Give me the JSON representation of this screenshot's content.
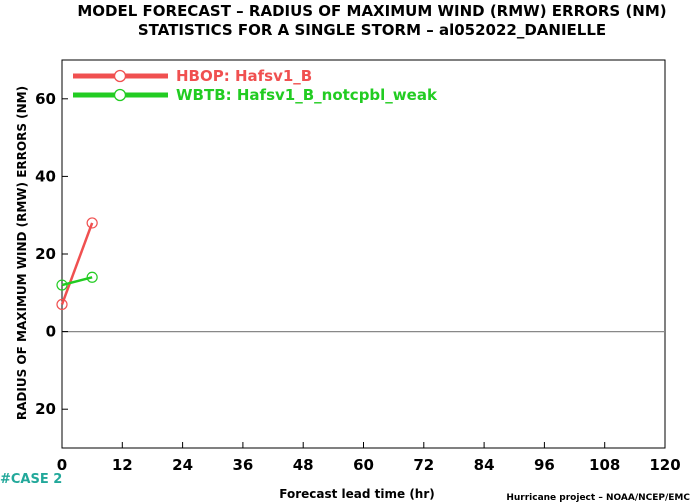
{
  "title": {
    "line1": "MODEL FORECAST – RADIUS OF MAXIMUM WIND (RMW) ERRORS (NM)",
    "line2": "STATISTICS FOR A SINGLE STORM – al052022_DANIELLE"
  },
  "case_label": "#CASE  2",
  "credit": "Hurricane project – NOAA/NCEP/EMC",
  "colors": {
    "axis": "#000000",
    "zero_line": "#888888",
    "case_label": "#22a89a"
  },
  "chart_data": {
    "type": "line",
    "xlabel": "Forecast lead time (hr)",
    "ylabel": "RADIUS OF MAXIMUM WIND (RMW) ERRORS (NM)",
    "xlim": [
      0,
      120
    ],
    "ylim": [
      -30,
      70
    ],
    "xticks": [
      0,
      12,
      24,
      36,
      48,
      60,
      72,
      84,
      96,
      108,
      120
    ],
    "yticks": [
      -20,
      0,
      20,
      40,
      60
    ],
    "ytick_labels": [
      "20",
      "0",
      "20",
      "40",
      "60"
    ],
    "grid": false,
    "zero_line": true,
    "legend_placement": "top-left",
    "series": [
      {
        "name": "HBOP: Hafsv1_B",
        "color": "#f05050",
        "x": [
          0,
          6
        ],
        "y": [
          7,
          28
        ]
      },
      {
        "name": "WBTB: Hafsv1_B_notcpbl_weak",
        "color": "#22cc22",
        "x": [
          0,
          6
        ],
        "y": [
          12,
          14
        ]
      }
    ]
  }
}
